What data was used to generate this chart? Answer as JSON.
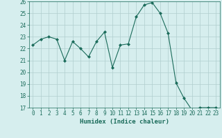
{
  "x": [
    0,
    1,
    2,
    3,
    4,
    5,
    6,
    7,
    8,
    9,
    10,
    11,
    12,
    13,
    14,
    15,
    16,
    17,
    18,
    19,
    20,
    21,
    22,
    23
  ],
  "y": [
    22.3,
    22.8,
    23.0,
    22.8,
    21.0,
    22.6,
    22.0,
    21.3,
    22.6,
    23.4,
    20.4,
    22.3,
    22.4,
    24.7,
    25.7,
    25.9,
    25.0,
    23.3,
    19.1,
    17.8,
    16.8,
    17.0,
    17.0,
    17.0
  ],
  "line_color": "#1a6b5a",
  "marker": "D",
  "marker_size": 2,
  "bg_color": "#d6eeee",
  "grid_color": "#b0cece",
  "xlabel": "Humidex (Indice chaleur)",
  "ylim": [
    17,
    26
  ],
  "xlim_min": -0.5,
  "xlim_max": 23.5,
  "yticks": [
    17,
    18,
    19,
    20,
    21,
    22,
    23,
    24,
    25,
    26
  ],
  "xticks": [
    0,
    1,
    2,
    3,
    4,
    5,
    6,
    7,
    8,
    9,
    10,
    11,
    12,
    13,
    14,
    15,
    16,
    17,
    18,
    19,
    20,
    21,
    22,
    23
  ],
  "tick_color": "#1a6b5a",
  "label_fontsize": 6.5,
  "tick_fontsize": 5.5
}
